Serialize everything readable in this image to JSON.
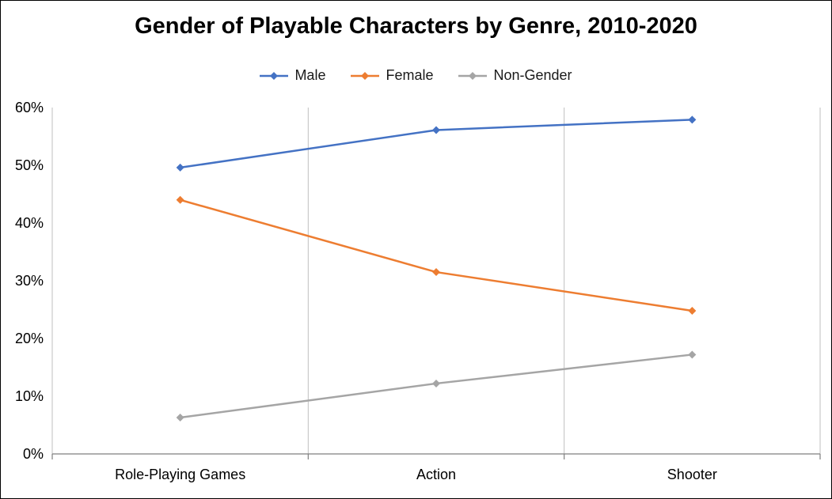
{
  "title": "Gender of Playable Characters by Genre, 2010-2020",
  "chart_data": {
    "type": "line",
    "categories": [
      "Role-Playing Games",
      "Action",
      "Shooter"
    ],
    "series": [
      {
        "name": "Male",
        "color": "#4472C4",
        "values": [
          49.6,
          56.1,
          57.9
        ]
      },
      {
        "name": "Female",
        "color": "#ED7D31",
        "values": [
          44.0,
          31.5,
          24.8
        ]
      },
      {
        "name": "Non-Gender",
        "color": "#A5A5A5",
        "values": [
          6.3,
          12.2,
          17.2
        ]
      }
    ],
    "ylim": [
      0,
      60
    ],
    "ytick_step": 10,
    "ytick_labels": [
      "0%",
      "10%",
      "20%",
      "30%",
      "40%",
      "50%",
      "60%"
    ],
    "unit": "percent",
    "legend_position": "top",
    "grid": "vertical-only",
    "marker": "diamond",
    "gridline_color": "#BFBFBF",
    "axis_color": "#7F7F7F",
    "text_color": "#000000"
  }
}
